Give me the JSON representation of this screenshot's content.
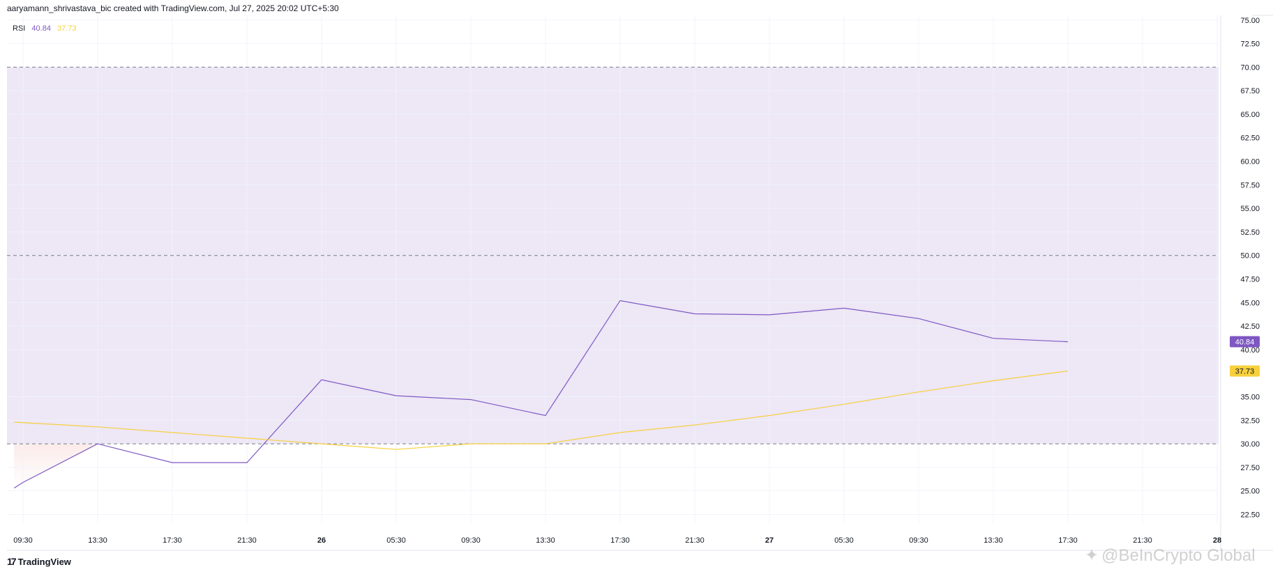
{
  "header": {
    "text": "aaryamann_shrivastava_bic created with TradingView.com, Jul 27, 2025 20:02 UTC+5:30"
  },
  "legend": {
    "label": "RSI",
    "value1": "40.84",
    "value2": "37.73"
  },
  "footer": {
    "logo_text": "TradingView",
    "logo_icon": "tradingview-logo-icon"
  },
  "watermark": {
    "text": "@BeInCrypto Global",
    "icon": "beincrypto-logo-icon"
  },
  "colors": {
    "rsi": "#7e57c2",
    "rsi_ma": "#f7d03c",
    "band": "#ede7f6",
    "grid": "#f0f3fa",
    "dashed": "#787b86",
    "oversold_fill": "#fbe9e7"
  },
  "chart_data": {
    "type": "line",
    "title": "",
    "xlabel": "",
    "ylabel": "",
    "ylim": [
      21.5,
      75.5
    ],
    "y_ticks": [
      "75.00",
      "72.50",
      "70.00",
      "67.50",
      "65.00",
      "62.50",
      "60.00",
      "57.50",
      "55.00",
      "52.50",
      "50.00",
      "47.50",
      "45.00",
      "42.50",
      "40.00",
      "35.00",
      "32.50",
      "30.00",
      "27.50",
      "25.00",
      "22.50"
    ],
    "x_ticks": [
      "09:30",
      "13:30",
      "17:30",
      "21:30",
      "26",
      "05:30",
      "09:30",
      "13:30",
      "17:30",
      "21:30",
      "27",
      "05:30",
      "09:30",
      "13:30",
      "17:30",
      "21:30",
      "28"
    ],
    "bands": {
      "upper": 70,
      "middle": 50,
      "lower": 30
    },
    "grid": true,
    "legend_position": "top-left",
    "series": [
      {
        "name": "RSI",
        "color": "#7e57c2",
        "x": [
          -0.12,
          0.0,
          1.0,
          2.0,
          3.0,
          4.0,
          5.0,
          6.0,
          7.0,
          8.0,
          9.0,
          10.0,
          11.0,
          12.0,
          13.0,
          14.0
        ],
        "values": [
          25.3,
          25.9,
          30.0,
          28.0,
          28.0,
          36.8,
          35.1,
          34.7,
          33.0,
          45.2,
          43.8,
          43.7,
          44.4,
          43.3,
          41.2,
          40.84
        ]
      },
      {
        "name": "",
        "color": "#f7d03c",
        "x": [
          -0.12,
          1.0,
          3.0,
          4.0,
          5.0,
          6.0,
          7.0,
          8.0,
          9.0,
          10.0,
          11.0,
          12.0,
          13.0,
          14.0
        ],
        "values": [
          32.3,
          31.8,
          30.6,
          30.0,
          29.4,
          30.0,
          30.0,
          31.2,
          32.0,
          33.0,
          34.2,
          35.5,
          36.7,
          37.73
        ]
      }
    ],
    "last_value_labels": [
      {
        "text": "40.84",
        "value": 40.84,
        "color": "#7e57c2"
      },
      {
        "text": "37.73",
        "value": 37.73,
        "color": "#f7d03c"
      }
    ]
  }
}
